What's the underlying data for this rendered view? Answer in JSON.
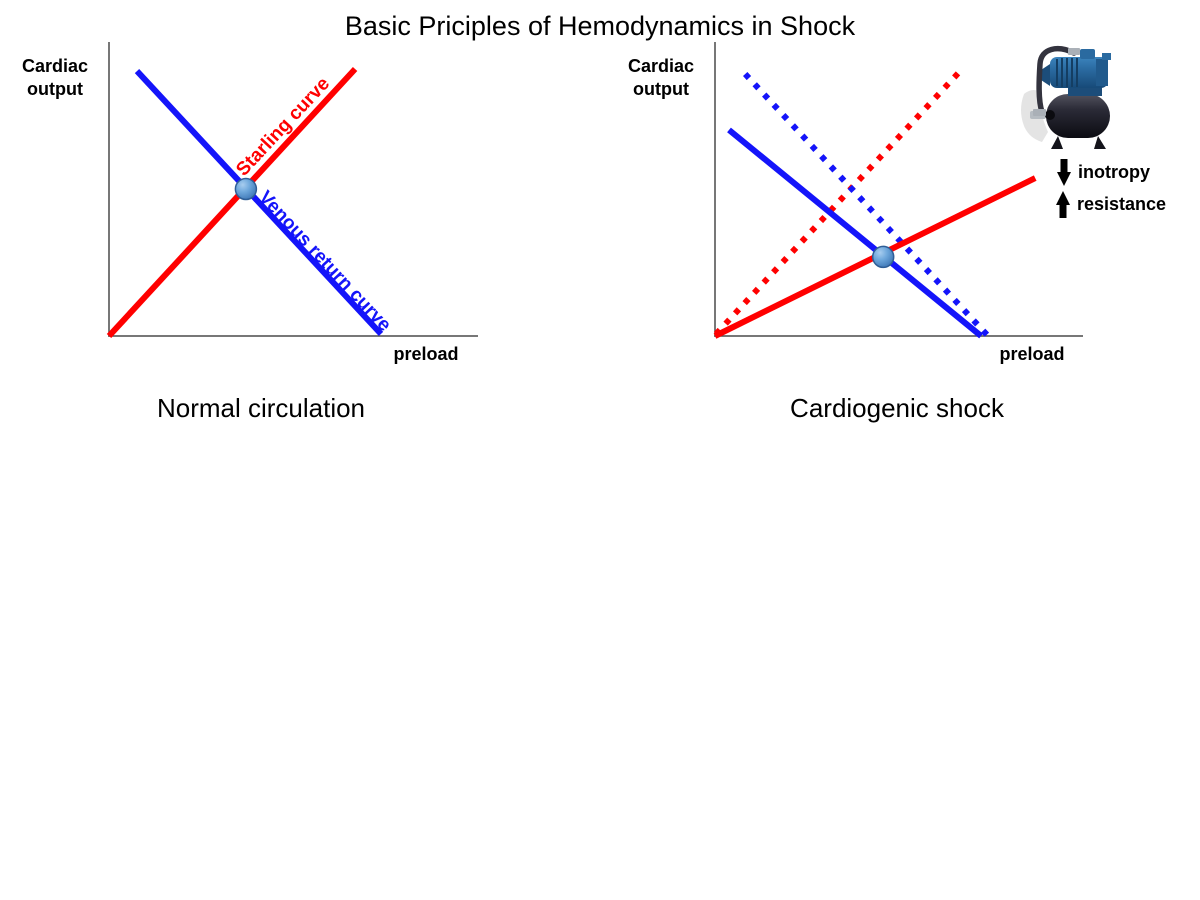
{
  "title": "Basic Priciples of Hemodynamics in Shock",
  "colors": {
    "starling_red": "#FF0000",
    "venous_blue": "#1414FA",
    "axis_gray": "#4A4A4A",
    "marker_sphere_blue": "#5B96D2",
    "text_black": "#000000"
  },
  "icons": {
    "pump": "water-pump",
    "inotropy_arrow": "down-arrow",
    "resistance_arrow": "up-arrow"
  },
  "left_chart": {
    "y_label_line1": "Cardiac",
    "y_label_line2": "output",
    "x_label": "preload",
    "caption": "Normal circulation",
    "line_labels": {
      "starling": "Starling curve",
      "venous": "Venous return curve"
    }
  },
  "right_chart": {
    "y_label_line1": "Cardiac",
    "y_label_line2": "output",
    "x_label": "preload",
    "caption": "Cardiogenic shock",
    "annotations": [
      {
        "arrow": "down",
        "label": "inotropy"
      },
      {
        "arrow": "up",
        "label": "resistance"
      }
    ]
  },
  "chart_data": [
    {
      "type": "line",
      "title": "Normal circulation",
      "xlabel": "preload",
      "ylabel": "Cardiac output",
      "axes": "qualitative sketch, no numeric ticks or gridlines",
      "series": [
        {
          "id": "starling-curve",
          "name": "Starling curve",
          "color": "#FF0000",
          "style": "solid",
          "points_norm": [
            [
              0.0,
              0.0
            ],
            [
              0.667,
              0.908
            ]
          ]
        },
        {
          "id": "venous-return-curve",
          "name": "Venous return curve",
          "color": "#1414FA",
          "style": "solid",
          "points_norm": [
            [
              0.076,
              0.901
            ],
            [
              0.737,
              0.007
            ]
          ]
        }
      ],
      "operating_point_norm": [
        0.371,
        0.5
      ]
    },
    {
      "type": "line",
      "title": "Cardiogenic shock",
      "xlabel": "preload",
      "ylabel": "Cardiac output",
      "axes": "qualitative sketch, no numeric ticks or gridlines",
      "series": [
        {
          "id": "normal-starling-reference",
          "name": "Starling curve (normal reference, dotted)",
          "color": "#FF0000",
          "style": "dotted",
          "points_norm": [
            [
              0.003,
              0.007
            ],
            [
              0.666,
              0.901
            ]
          ]
        },
        {
          "id": "normal-venous-reference",
          "name": "Venous return curve (normal reference, dotted)",
          "color": "#1414FA",
          "style": "dotted",
          "points_norm": [
            [
              0.082,
              0.891
            ],
            [
              0.742,
              0.0
            ]
          ]
        },
        {
          "id": "depressed-starling-curve",
          "name": "Starling curve (decreased inotropy)",
          "color": "#FF0000",
          "style": "solid",
          "points_norm": [
            [
              0.0,
              0.0
            ],
            [
              0.87,
              0.537
            ]
          ]
        },
        {
          "id": "shock-venous-return-curve",
          "name": "Venous return curve (shock)",
          "color": "#1414FA",
          "style": "solid",
          "points_norm": [
            [
              0.038,
              0.701
            ],
            [
              0.723,
              0.0
            ]
          ]
        }
      ],
      "operating_point_norm": [
        0.457,
        0.269
      ]
    }
  ]
}
